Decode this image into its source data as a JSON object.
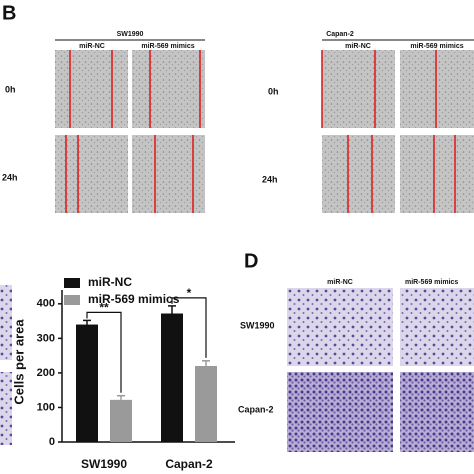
{
  "figure": {
    "panel_b": {
      "label": "B",
      "left": {
        "title": "SW1990",
        "columns": [
          "miR-NC",
          "miR-569 mimics"
        ],
        "rows": [
          "0h",
          "24h"
        ]
      },
      "right": {
        "title": "Capan-2",
        "columns": [
          "miR-NC",
          "miR-569 mimics"
        ],
        "rows": [
          "0h",
          "24h"
        ]
      }
    },
    "panel_d": {
      "label": "D",
      "columns": [
        "miR-NC",
        "miR-569 mimics"
      ],
      "rows": [
        "SW1990",
        "Capan-2"
      ]
    }
  },
  "chart_data": {
    "type": "bar",
    "y_label": "Cells per area",
    "categories": [
      "SW1990",
      "Capan-2"
    ],
    "series": [
      {
        "name": "miR-NC",
        "color": "#111111",
        "values": [
          340,
          372
        ],
        "errors": [
          12,
          22
        ]
      },
      {
        "name": "miR-569 mimics",
        "color": "#9a9a9a",
        "values": [
          122,
          220
        ],
        "errors": [
          12,
          15
        ]
      }
    ],
    "annotations": [
      "**",
      "*"
    ],
    "ylim": [
      0,
      440
    ],
    "yticks": [
      0,
      100,
      200,
      300,
      400
    ],
    "legend": "top-left"
  }
}
